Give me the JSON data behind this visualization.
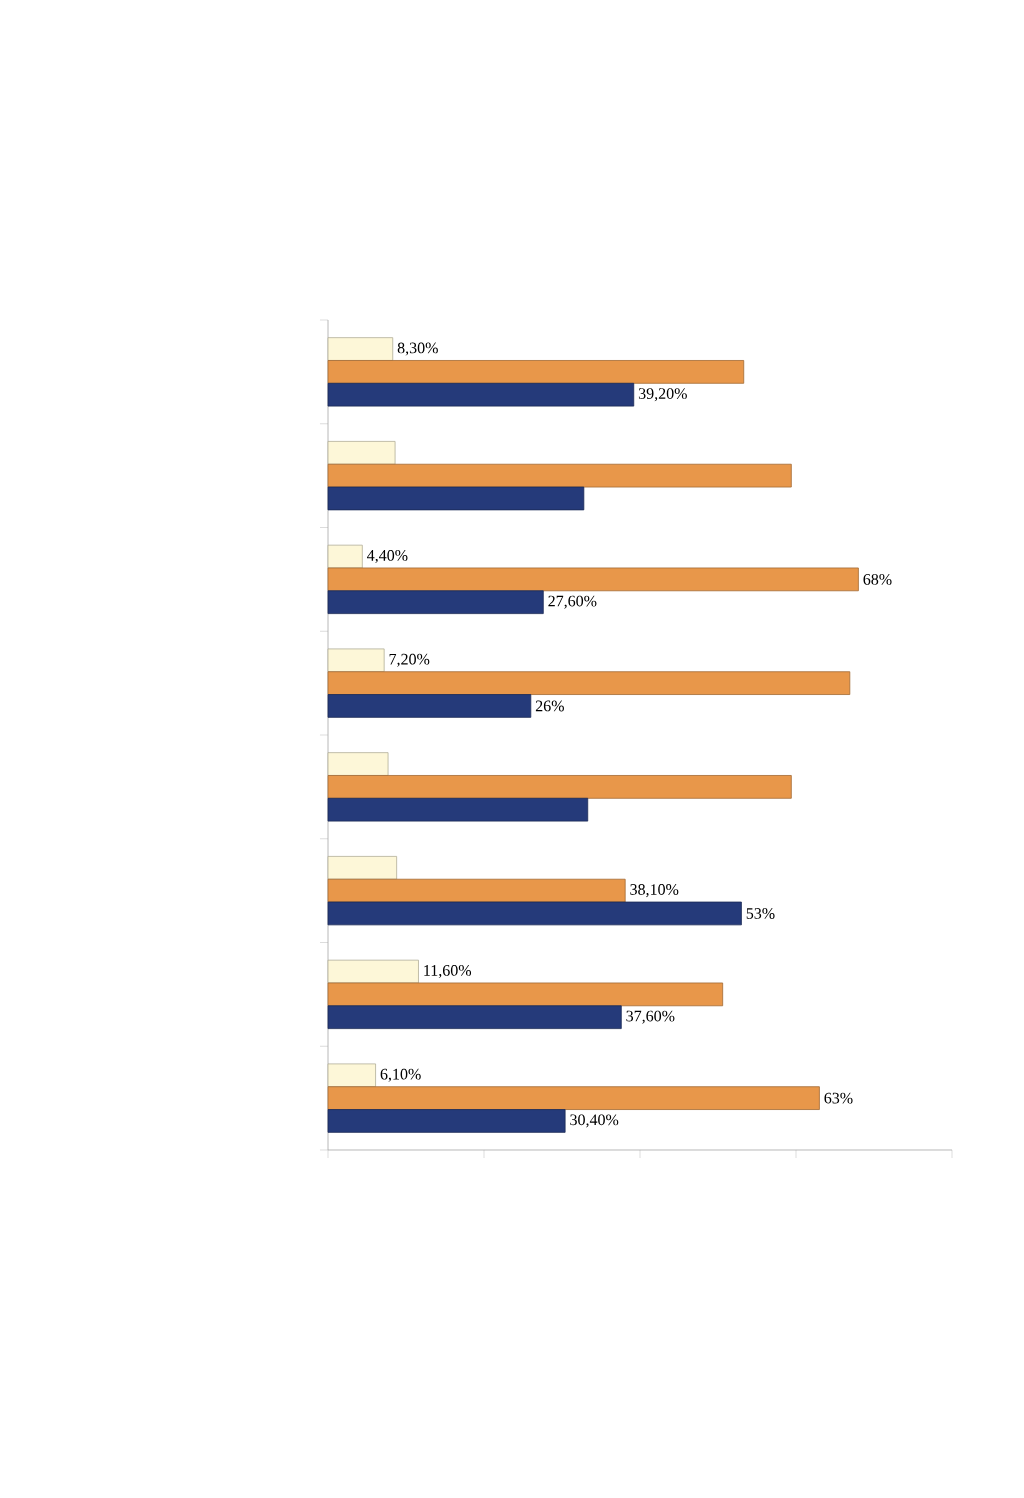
{
  "chart_data": {
    "type": "bar",
    "orientation": "horizontal",
    "categories": [
      null,
      null,
      null,
      null,
      null,
      null,
      null,
      null
    ],
    "series": [
      {
        "color": "#fdf7d8",
        "values": [
          8.3,
          8.6,
          4.4,
          7.2,
          7.7,
          8.8,
          11.6,
          6.1
        ],
        "value_labels": [
          "8,30%",
          null,
          "4,40%",
          "7,20%",
          null,
          null,
          "11,60%",
          "6,10%"
        ]
      },
      {
        "color": "#e8974a",
        "values": [
          53.3,
          59.4,
          68,
          66.9,
          59.4,
          38.1,
          50.6,
          63
        ],
        "value_labels": [
          null,
          null,
          "68%",
          null,
          null,
          "38,10%",
          null,
          "63%"
        ]
      },
      {
        "color": "#253a7a",
        "values": [
          39.2,
          32.8,
          27.6,
          26,
          33.3,
          53,
          37.6,
          30.4
        ],
        "value_labels": [
          "39,20%",
          null,
          "27,60%",
          "26%",
          null,
          "53%",
          "37,60%",
          "30,40%"
        ]
      }
    ],
    "xlim": [
      0,
      80
    ],
    "xticks": [
      {
        "value": 0,
        "label": null
      },
      {
        "value": 20,
        "label": null
      },
      {
        "value": 40,
        "label": null
      },
      {
        "value": 60,
        "label": null
      },
      {
        "value": 80,
        "label": null
      }
    ],
    "grid": false
  }
}
